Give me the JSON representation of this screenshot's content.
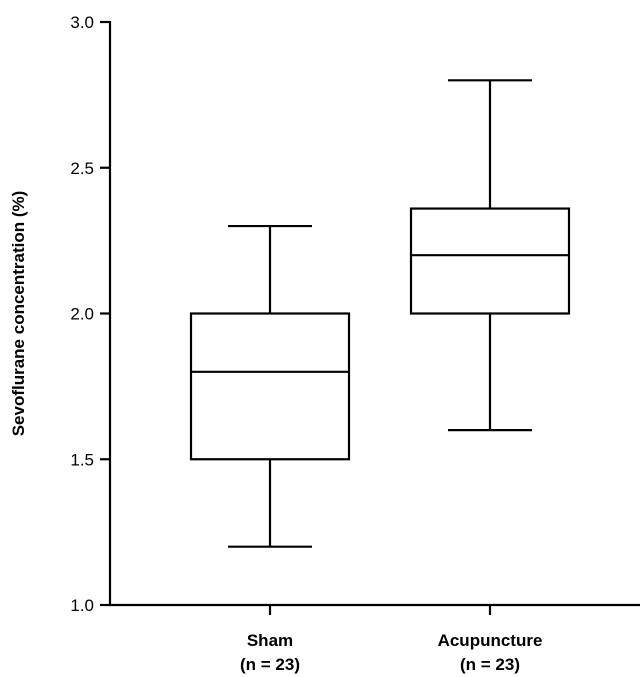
{
  "chart_data": {
    "type": "box",
    "title": "",
    "xlabel": "",
    "ylabel": "Sevoflurane concentration (%)",
    "ylim": [
      1.0,
      3.0
    ],
    "yticks": [
      "1.0",
      "1.5",
      "2.0",
      "2.5",
      "3.0"
    ],
    "grid": false,
    "categories": [
      {
        "name": "Sham",
        "n_label": "(n = 23)"
      },
      {
        "name": "Acupuncture",
        "n_label": "(n = 23)"
      }
    ],
    "series": [
      {
        "category": "Sham",
        "min": 1.2,
        "q1": 1.5,
        "median": 1.8,
        "q3": 2.0,
        "max": 2.3
      },
      {
        "category": "Acupuncture",
        "min": 1.6,
        "q1": 2.0,
        "median": 2.2,
        "q3": 2.36,
        "max": 2.8
      }
    ]
  }
}
